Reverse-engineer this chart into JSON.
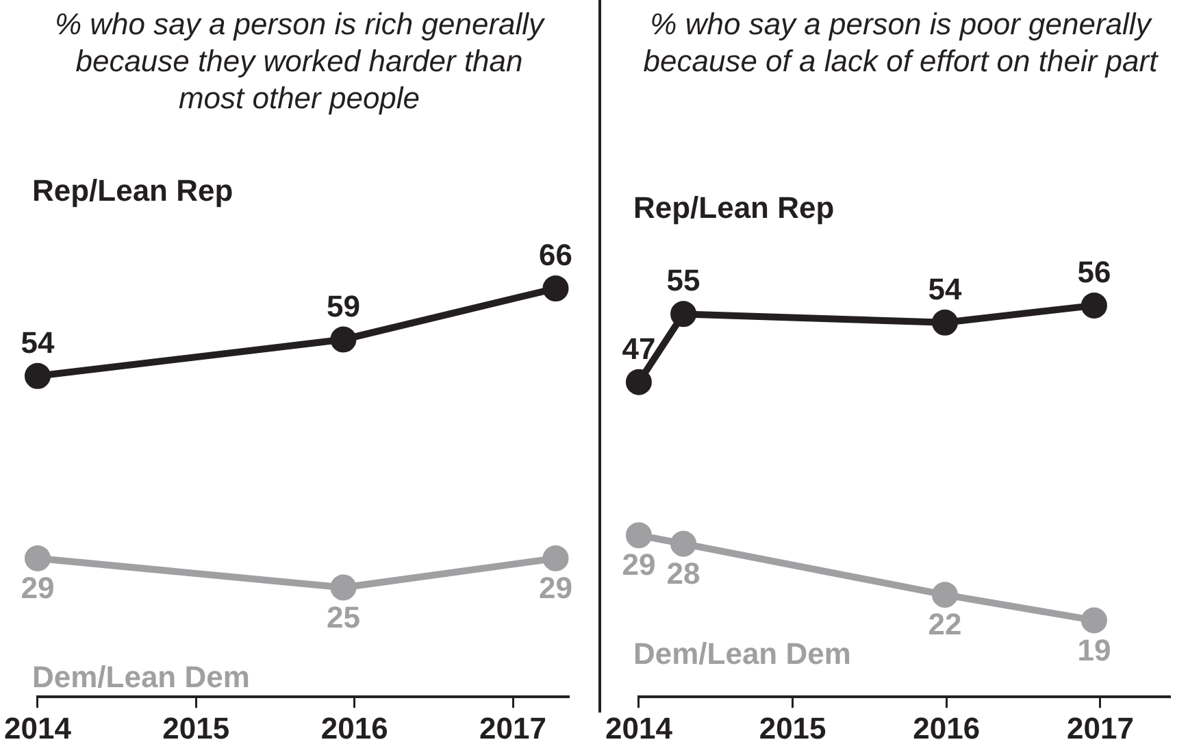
{
  "chart_data": [
    {
      "type": "line",
      "title": "% who say a person is rich generally because they worked harder than most other people",
      "x": [
        2014,
        2015.93,
        2017.27
      ],
      "xlim": [
        2014,
        2017.35
      ],
      "xticks": [
        2014,
        2015,
        2016,
        2017
      ],
      "tick_labels": "x",
      "grid": false,
      "legend": false,
      "marker": "circle",
      "data_labels": true,
      "series": [
        {
          "name": "Rep/Lean Rep",
          "color": "#231f20",
          "values": [
            54,
            59,
            66
          ]
        },
        {
          "name": "Dem/Lean Dem",
          "color": "#a0a0a3",
          "values": [
            29,
            25,
            29
          ]
        }
      ]
    },
    {
      "type": "line",
      "title": "% who say a person is poor generally because of a lack of effort on their part",
      "x": [
        2014,
        2014.29,
        2015.99,
        2016.96
      ],
      "xlim": [
        2014,
        2017.45
      ],
      "xticks": [
        2014,
        2015,
        2016,
        2017
      ],
      "tick_labels": "x",
      "grid": false,
      "legend": false,
      "marker": "circle",
      "data_labels": true,
      "series": [
        {
          "name": "Rep/Lean Rep",
          "color": "#231f20",
          "values": [
            47,
            55,
            54,
            56
          ]
        },
        {
          "name": "Dem/Lean Dem",
          "color": "#a0a0a3",
          "values": [
            29,
            28,
            22,
            19
          ]
        }
      ]
    }
  ]
}
